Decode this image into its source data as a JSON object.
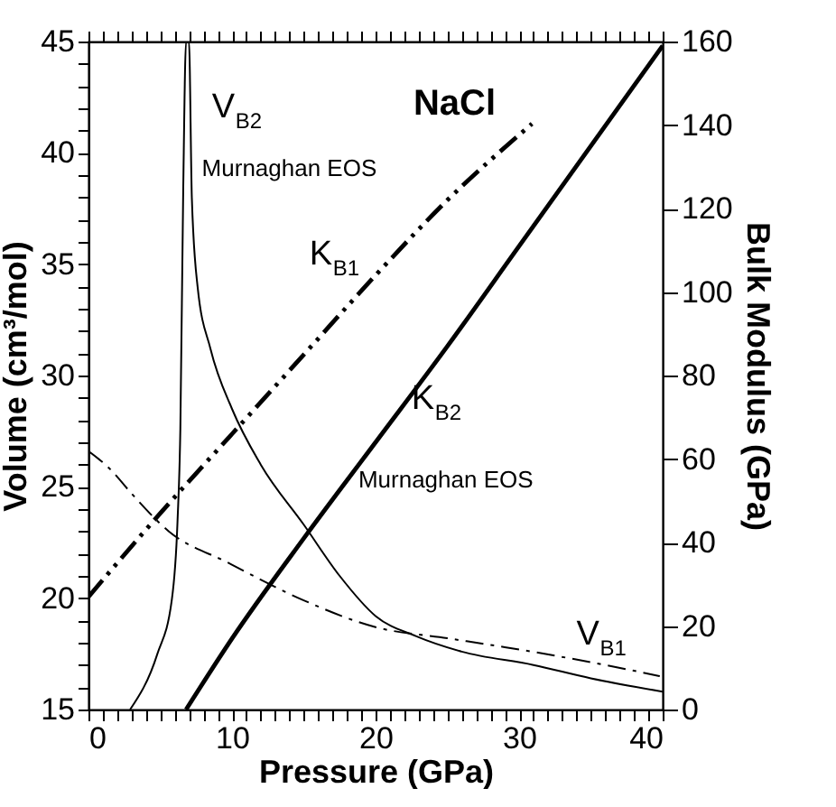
{
  "chart_data": {
    "type": "line",
    "title": "NaCl",
    "xlabel": "Pressure (GPa)",
    "ylabel": "Volume (cm³/mol)",
    "y2label": "Bulk Modulus (GPa)",
    "xlim": [
      0,
      40
    ],
    "ylim": [
      15,
      45
    ],
    "y2lim": [
      0,
      160
    ],
    "xticks": [
      0,
      {
        "value": 1,
        "label": null
      },
      {
        "value": 2,
        "label": null
      },
      {
        "value": 3,
        "label": null
      },
      {
        "value": 4,
        "label": null
      },
      {
        "value": 5,
        "label": null
      },
      {
        "value": 6,
        "label": null
      },
      {
        "value": 7,
        "label": null
      },
      {
        "value": 8,
        "label": null
      },
      {
        "value": 9,
        "label": null
      },
      10,
      {
        "value": 11,
        "label": null
      },
      {
        "value": 12,
        "label": null
      },
      {
        "value": 13,
        "label": null
      },
      {
        "value": 14,
        "label": null
      },
      {
        "value": 15,
        "label": null
      },
      {
        "value": 16,
        "label": null
      },
      {
        "value": 17,
        "label": null
      },
      {
        "value": 18,
        "label": null
      },
      {
        "value": 19,
        "label": null
      },
      20,
      {
        "value": 21,
        "label": null
      },
      {
        "value": 22,
        "label": null
      },
      {
        "value": 23,
        "label": null
      },
      {
        "value": 24,
        "label": null
      },
      {
        "value": 25,
        "label": null
      },
      {
        "value": 26,
        "label": null
      },
      {
        "value": 27,
        "label": null
      },
      {
        "value": 28,
        "label": null
      },
      {
        "value": 29,
        "label": null
      },
      30,
      {
        "value": 31,
        "label": null
      },
      {
        "value": 32,
        "label": null
      },
      {
        "value": 33,
        "label": null
      },
      {
        "value": 34,
        "label": null
      },
      {
        "value": 35,
        "label": null
      },
      {
        "value": 36,
        "label": null
      },
      {
        "value": 37,
        "label": null
      },
      {
        "value": 38,
        "label": null
      },
      {
        "value": 39,
        "label": null
      },
      40
    ],
    "yticks": [
      15,
      {
        "value": 16,
        "label": null
      },
      {
        "value": 17,
        "label": null
      },
      {
        "value": 18,
        "label": null
      },
      {
        "value": 19,
        "label": null
      },
      20,
      {
        "value": 21,
        "label": null
      },
      {
        "value": 22,
        "label": null
      },
      {
        "value": 23,
        "label": null
      },
      {
        "value": 24,
        "label": null
      },
      25,
      {
        "value": 26,
        "label": null
      },
      {
        "value": 27,
        "label": null
      },
      {
        "value": 28,
        "label": null
      },
      {
        "value": 29,
        "label": null
      },
      30,
      {
        "value": 31,
        "label": null
      },
      {
        "value": 32,
        "label": null
      },
      {
        "value": 33,
        "label": null
      },
      {
        "value": 34,
        "label": null
      },
      35,
      {
        "value": 36,
        "label": null
      },
      {
        "value": 37,
        "label": null
      },
      {
        "value": 38,
        "label": null
      },
      {
        "value": 39,
        "label": null
      },
      40,
      {
        "value": 41,
        "label": null
      },
      {
        "value": 42,
        "label": null
      },
      {
        "value": 43,
        "label": null
      },
      {
        "value": 44,
        "label": null
      },
      45
    ],
    "y2ticks": [
      0,
      20,
      40,
      60,
      80,
      100,
      120,
      140,
      160
    ],
    "grid": false,
    "marker": "none",
    "series": [
      {
        "name": "V$_{B2}$",
        "color": "#000000",
        "line_style": "solid",
        "x": [
          2.9,
          4.8,
          5.8,
          6.2,
          6.4,
          6.6,
          6.8,
          7.0,
          7.2,
          7.6,
          8.5,
          10,
          12,
          15,
          17.5,
          20,
          22.8,
          26,
          31,
          35,
          40
        ],
        "values": [
          15,
          17.5,
          19.9,
          23.4,
          27.6,
          38.3,
          45,
          45,
          38,
          34,
          31.2,
          28.5,
          26,
          23.3,
          21,
          19.2,
          18.3,
          17.6,
          17,
          16.4,
          15.8
        ]
      },
      {
        "name": "V$_{B1}$",
        "color": "#000000",
        "line_style": "dashdot",
        "x": [
          0,
          1.5,
          3,
          5.6,
          9.7,
          15,
          20,
          25,
          29,
          35.2,
          39.8
        ],
        "values": [
          26.6,
          25.8,
          24.7,
          23,
          21.6,
          19.9,
          18.7,
          18.2,
          17.8,
          17.1,
          16.5
        ]
      },
      {
        "name": "K$_{B1}$",
        "color": "#000000",
        "line_style": "dashdotdot",
        "axis": "y2",
        "x": [
          0,
          5,
          10,
          15,
          20,
          25,
          30.9
        ],
        "values": [
          27,
          47,
          66,
          85,
          104,
          122,
          140.3
        ]
      },
      {
        "name": "K$_{B2}$",
        "color": "#000000",
        "line_style": "solid",
        "axis": "y2",
        "x": [
          6.8,
          10,
          15,
          20,
          25,
          30,
          35,
          40
        ],
        "values": [
          0,
          17,
          41,
          64,
          87,
          111,
          135,
          159
        ]
      }
    ],
    "annotations": [
      "Murnaghan EOS",
      "Murnaghan EOS"
    ]
  }
}
